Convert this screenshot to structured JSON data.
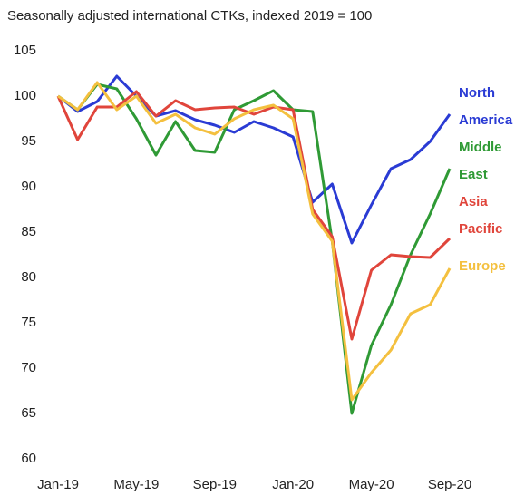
{
  "chart_data": {
    "type": "line",
    "title": "Seasonally adjusted international CTKs, indexed 2019 = 100",
    "categories": [
      "Jan-19",
      null,
      null,
      null,
      "May-19",
      null,
      null,
      null,
      "Sep-19",
      null,
      null,
      null,
      "Jan-20",
      null,
      null,
      null,
      "May-20",
      null,
      null,
      null,
      "Sep-20"
    ],
    "ylim": [
      60,
      105
    ],
    "yticks": [
      60,
      65,
      70,
      75,
      80,
      85,
      90,
      95,
      100,
      105
    ],
    "grid": false,
    "series": [
      {
        "name": "North America",
        "color": "#2a3bd4",
        "values": [
          100,
          98.3,
          99.4,
          102.2,
          100,
          97.8,
          98.4,
          97.4,
          96.8,
          96,
          97.2,
          96.5,
          95.5,
          88.3,
          90.3,
          83.8,
          88,
          92,
          93,
          95,
          98
        ]
      },
      {
        "name": "Middle East",
        "color": "#2f9a35",
        "values": [
          100,
          98.5,
          101.3,
          100.8,
          97.5,
          93.5,
          97.2,
          94,
          93.8,
          98.5,
          99.5,
          100.6,
          98.5,
          98.3,
          84,
          65,
          72.5,
          77,
          82.5,
          87,
          92
        ]
      },
      {
        "name": "Asia Pacific",
        "color": "#e0453b",
        "values": [
          100,
          95.2,
          98.8,
          98.8,
          100.5,
          97.8,
          99.5,
          98.5,
          98.7,
          98.8,
          98,
          98.8,
          98.5,
          87.5,
          84.5,
          73.2,
          80.8,
          82.5,
          82.3,
          82.2,
          84.3
        ]
      },
      {
        "name": "Europe",
        "color": "#f4c03f",
        "values": [
          100,
          98.5,
          101.5,
          98.5,
          100,
          97,
          98,
          96.5,
          95.8,
          97.5,
          98.5,
          99,
          97.5,
          87,
          84,
          66.5,
          69.5,
          72,
          76,
          77,
          81
        ]
      }
    ]
  }
}
